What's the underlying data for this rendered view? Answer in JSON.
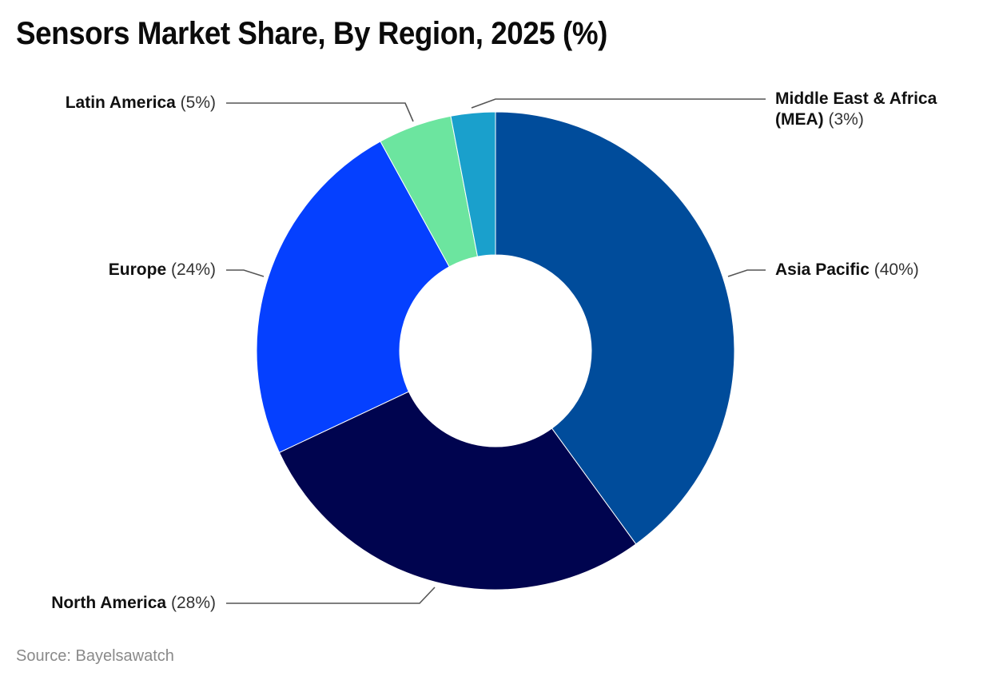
{
  "title": "Sensors Market Share, By Region, 2025 (%)",
  "source": "Source: Bayelsawatch",
  "labels": {
    "asia_pacific": {
      "name": "Asia Pacific",
      "pct": "(40%)"
    },
    "north_america": {
      "name": "North America",
      "pct": "(28%)"
    },
    "europe": {
      "name": "Europe",
      "pct": "(24%)"
    },
    "latin_america": {
      "name": "Latin America",
      "pct": "(5%)"
    },
    "mea": {
      "name_line1": "Middle East & Africa",
      "name_line2": "(MEA)",
      "pct": "(3%)"
    }
  },
  "chart_data": {
    "type": "pie",
    "subtype": "donut",
    "title": "Sensors Market Share, By Region, 2025 (%)",
    "categories": [
      "Asia Pacific",
      "North America",
      "Europe",
      "Latin America",
      "Middle East & Africa (MEA)"
    ],
    "values": [
      40,
      28,
      24,
      5,
      3
    ],
    "unit": "%",
    "colors": [
      "#004c9b",
      "#00044f",
      "#0540ff",
      "#6ce59f",
      "#1aa0cc"
    ],
    "start_angle": "12 o'clock",
    "direction": "clockwise",
    "legend": "none (inline leader-line labels)",
    "source": "Source: Bayelsawatch"
  }
}
